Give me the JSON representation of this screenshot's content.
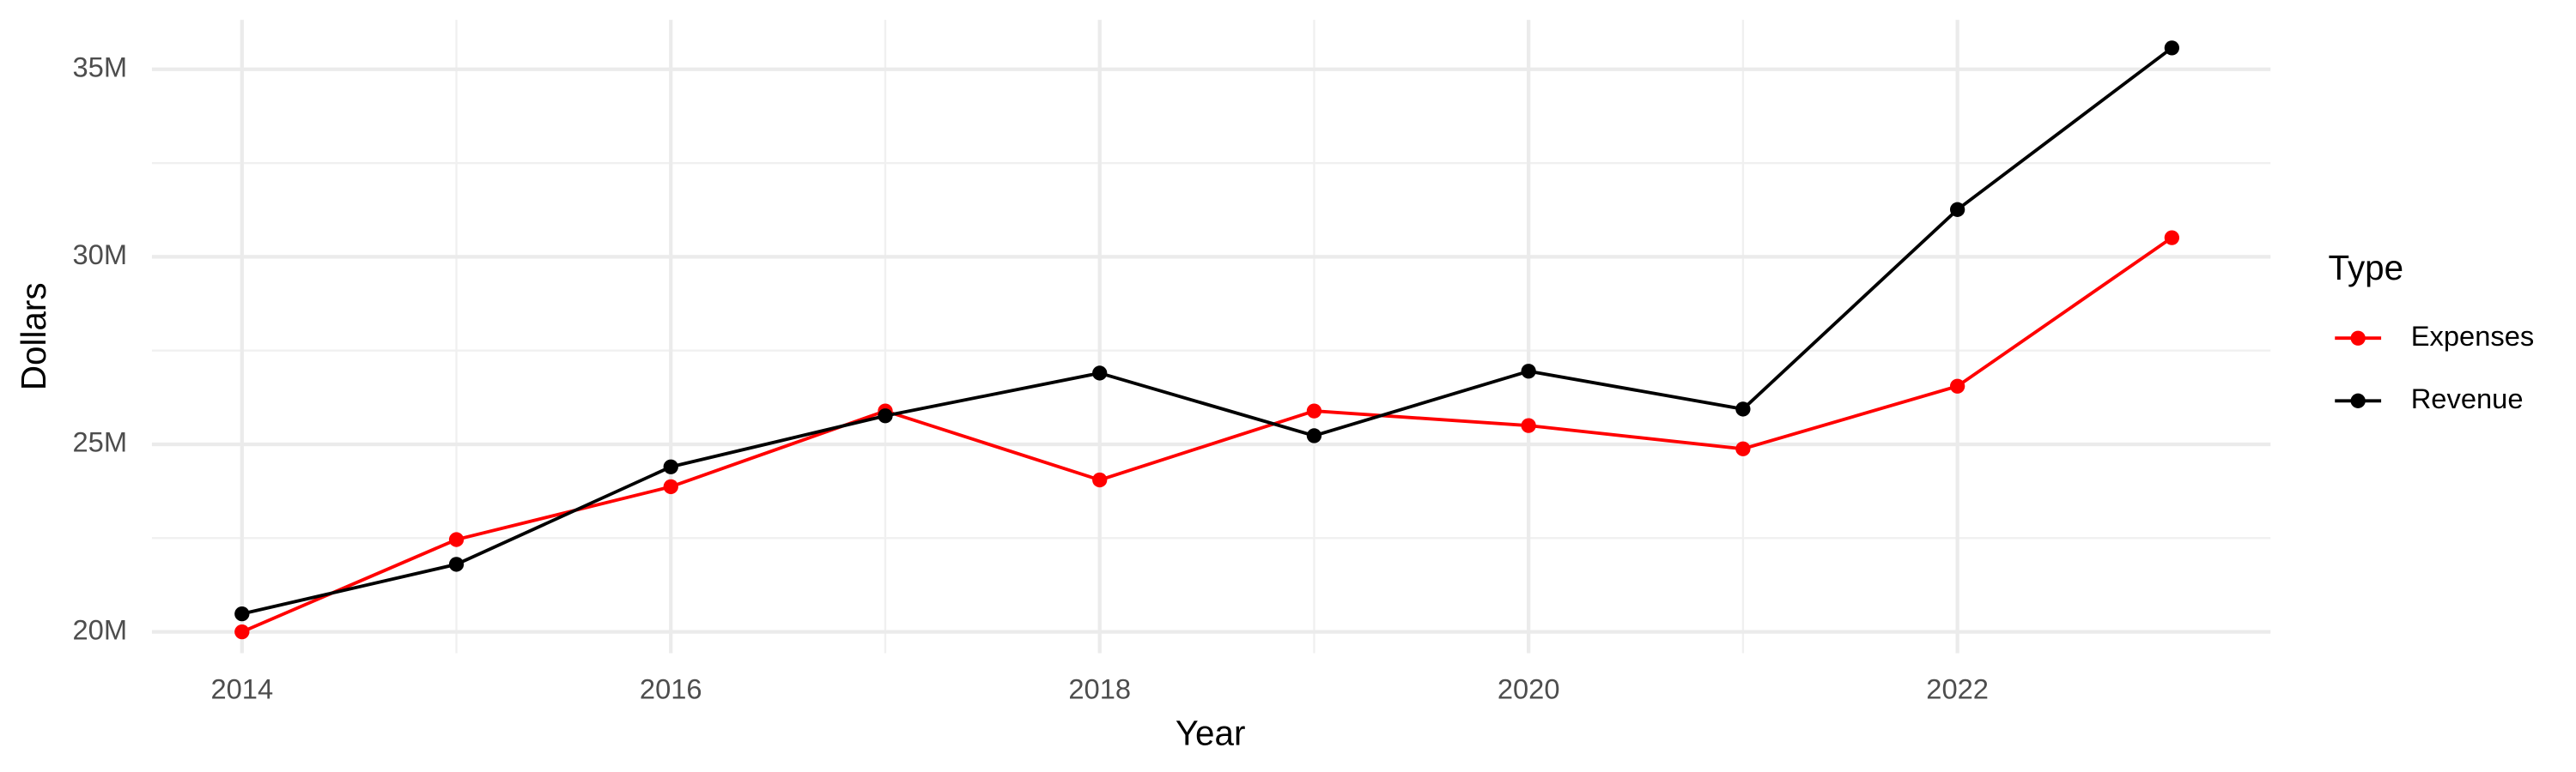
{
  "chart_data": {
    "type": "line",
    "x_label": "Year",
    "y_label": "Dollars",
    "x": [
      2014,
      2015,
      2016,
      2017,
      2018,
      2019,
      2020,
      2021,
      2022,
      2023
    ],
    "series": [
      {
        "name": "Expenses",
        "color": "#ff0000",
        "values": [
          20000000,
          22460000,
          23870000,
          25890000,
          24050000,
          25890000,
          25500000,
          24880000,
          26550000,
          30510000
        ]
      },
      {
        "name": "Revenue",
        "color": "#000000",
        "values": [
          20480000,
          21800000,
          24400000,
          25760000,
          26900000,
          25230000,
          26950000,
          25940000,
          31260000,
          35570000
        ]
      }
    ],
    "xlim": [
      2013.58,
      2023.46
    ],
    "xticks": [
      2014,
      2016,
      2018,
      2020,
      2022
    ],
    "ylim": [
      19430000,
      36320000
    ],
    "yticks": [
      {
        "value": 20000000,
        "label": "20M"
      },
      {
        "value": 25000000,
        "label": "25M"
      },
      {
        "value": 30000000,
        "label": "30M"
      },
      {
        "value": 35000000,
        "label": "35M"
      }
    ],
    "grid": true,
    "legend_title": "Type",
    "legend_position": "right"
  }
}
